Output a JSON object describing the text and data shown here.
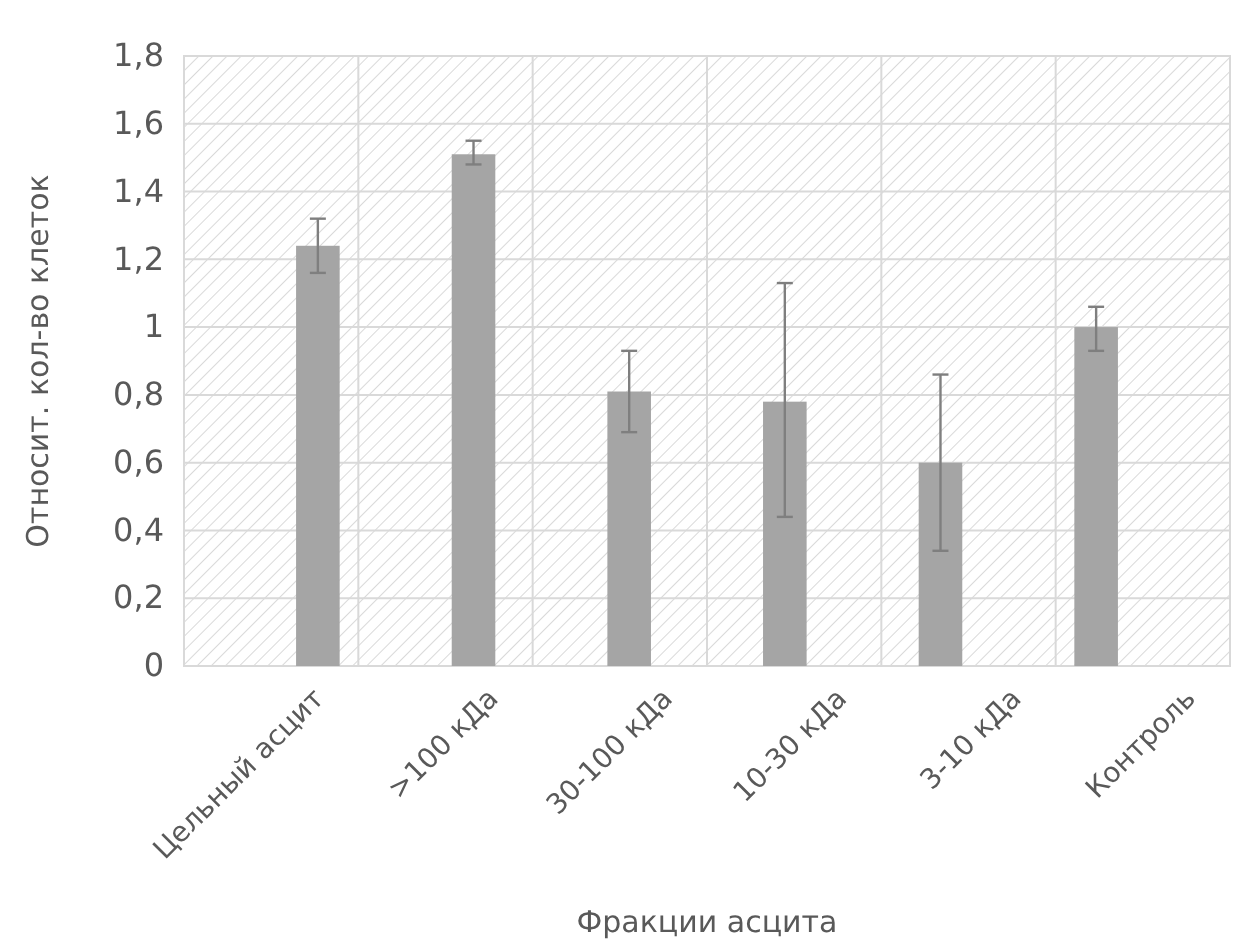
{
  "chart_data": {
    "type": "bar",
    "xlabel": "Фракции асцита",
    "ylabel": "Относит. кол-во клеток",
    "categories": [
      "Цельный асцит",
      ">100 кДа",
      "30-100 кДа",
      "10-30 кДа",
      "3-10 кДа",
      "Контроль"
    ],
    "values": [
      1.24,
      1.51,
      0.81,
      0.78,
      0.6,
      1.0
    ],
    "errors": [
      [
        1.16,
        1.32
      ],
      [
        1.48,
        1.55
      ],
      [
        0.69,
        0.93
      ],
      [
        0.44,
        1.13
      ],
      [
        0.34,
        0.86
      ],
      [
        0.93,
        1.06
      ]
    ],
    "color": "#a5a5a5",
    "ylim": [
      0,
      1.8
    ],
    "yticks": [
      0,
      {
        "value": 0.2,
        "label": "0,2"
      },
      {
        "value": 0.4,
        "label": "0,4"
      },
      {
        "value": 0.6,
        "label": "0,6"
      },
      {
        "value": 0.8,
        "label": "0,8"
      },
      1,
      {
        "value": 1.2,
        "label": "1,2"
      },
      {
        "value": 1.4,
        "label": "1,4"
      },
      {
        "value": 1.6,
        "label": "1,6"
      },
      {
        "value": 1.8,
        "label": "1,8"
      }
    ],
    "grid": true
  }
}
